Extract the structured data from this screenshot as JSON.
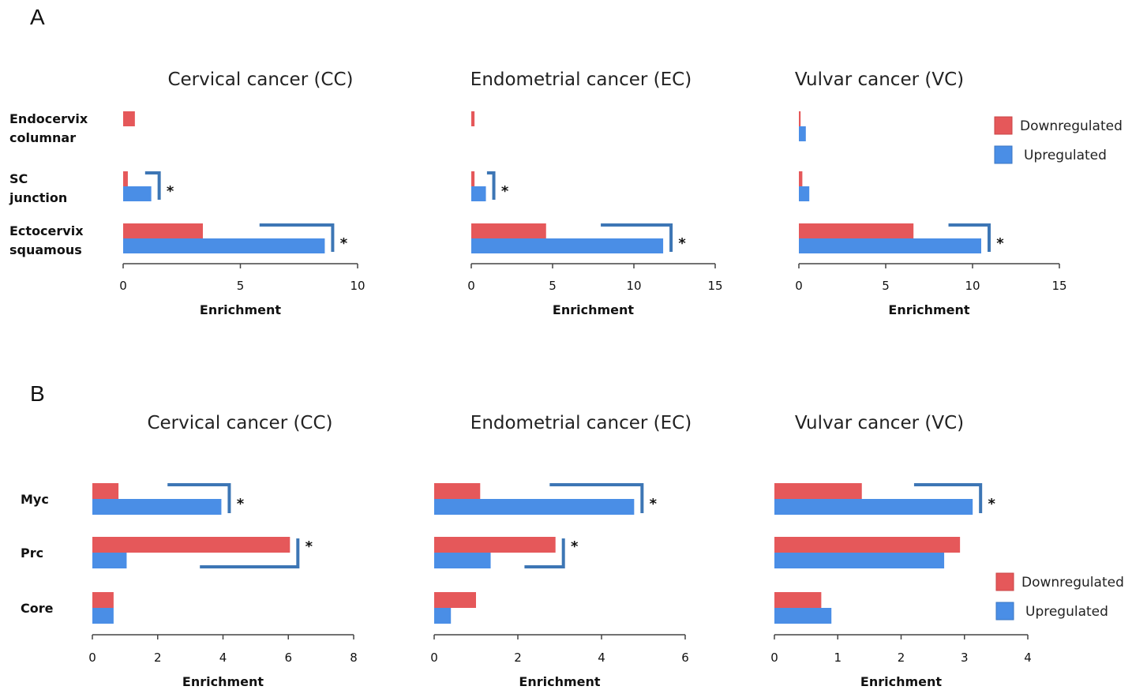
{
  "panels": [
    {
      "letter": "A"
    },
    {
      "letter": "B"
    }
  ],
  "legend": {
    "down_label": "Downregulated",
    "up_label": "Upregulated",
    "down_color": "#e5585a",
    "up_color": "#4a8ee6",
    "bracket_color": "#3d76b5"
  },
  "chart_data": [
    {
      "type": "bar",
      "panel": "A",
      "title": "Cervical cancer (CC)",
      "xlabel": "Enrichment",
      "categories": [
        "Endocervix columnar",
        "SC junction",
        "Ectocervix squamous"
      ],
      "xlim": [
        0,
        10
      ],
      "xticks": [
        0,
        5,
        10
      ],
      "series": [
        {
          "name": "Downregulated",
          "values": [
            0.5,
            0.2,
            3.4
          ]
        },
        {
          "name": "Upregulated",
          "values": [
            0.0,
            1.2,
            8.6
          ]
        }
      ],
      "significance": [
        "",
        "*",
        "*"
      ]
    },
    {
      "type": "bar",
      "panel": "A",
      "title": "Endometrial cancer (EC)",
      "xlabel": "Enrichment",
      "categories": [
        "Endocervix columnar",
        "SC junction",
        "Ectocervix squamous"
      ],
      "xlim": [
        0,
        15
      ],
      "xticks": [
        0,
        5,
        10,
        15
      ],
      "series": [
        {
          "name": "Downregulated",
          "values": [
            0.2,
            0.2,
            4.6
          ]
        },
        {
          "name": "Upregulated",
          "values": [
            0.0,
            0.9,
            11.8
          ]
        }
      ],
      "significance": [
        "",
        "*",
        "*"
      ]
    },
    {
      "type": "bar",
      "panel": "A",
      "title": "Vulvar cancer (VC)",
      "xlabel": "Enrichment",
      "categories": [
        "Endocervix columnar",
        "SC junction",
        "Ectocervix squamous"
      ],
      "xlim": [
        0,
        15
      ],
      "xticks": [
        0,
        5,
        10,
        15
      ],
      "series": [
        {
          "name": "Downregulated",
          "values": [
            0.1,
            0.2,
            6.6
          ]
        },
        {
          "name": "Upregulated",
          "values": [
            0.4,
            0.6,
            10.5
          ]
        }
      ],
      "significance": [
        "",
        "",
        "*"
      ]
    },
    {
      "type": "bar",
      "panel": "B",
      "title": "Cervical cancer (CC)",
      "xlabel": "Enrichment",
      "categories": [
        "Myc",
        "Prc",
        "Core"
      ],
      "xlim": [
        0,
        8
      ],
      "xticks": [
        0,
        2,
        4,
        6,
        8
      ],
      "series": [
        {
          "name": "Downregulated",
          "values": [
            0.8,
            6.05,
            0.65
          ]
        },
        {
          "name": "Upregulated",
          "values": [
            3.95,
            1.05,
            0.65
          ]
        }
      ],
      "significance": [
        "*",
        "*",
        ""
      ]
    },
    {
      "type": "bar",
      "panel": "B",
      "title": "Endometrial cancer (EC)",
      "xlabel": "Enrichment",
      "categories": [
        "Myc",
        "Prc",
        "Core"
      ],
      "xlim": [
        0,
        6
      ],
      "xticks": [
        0,
        2,
        4,
        6
      ],
      "series": [
        {
          "name": "Downregulated",
          "values": [
            1.1,
            2.9,
            1.0
          ]
        },
        {
          "name": "Upregulated",
          "values": [
            4.78,
            1.35,
            0.4
          ]
        }
      ],
      "significance": [
        "*",
        "*",
        ""
      ]
    },
    {
      "type": "bar",
      "panel": "B",
      "title": "Vulvar cancer (VC)",
      "xlabel": "Enrichment",
      "categories": [
        "Myc",
        "Prc",
        "Core"
      ],
      "xlim": [
        0,
        4
      ],
      "xticks": [
        0,
        1,
        2,
        3,
        4
      ],
      "series": [
        {
          "name": "Downregulated",
          "values": [
            1.38,
            2.93,
            0.74
          ]
        },
        {
          "name": "Upregulated",
          "values": [
            3.13,
            2.68,
            0.9
          ]
        }
      ],
      "significance": [
        "*",
        "",
        ""
      ]
    }
  ]
}
